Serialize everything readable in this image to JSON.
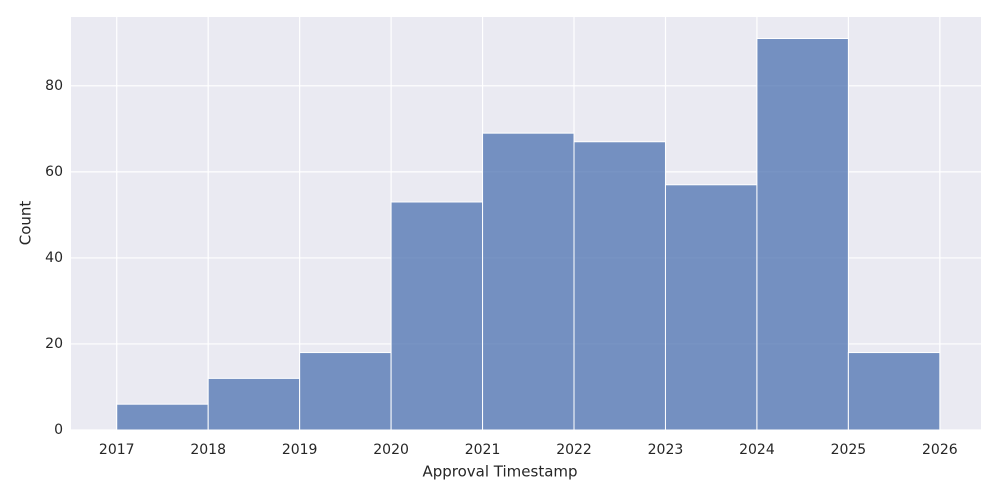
{
  "chart_data": {
    "type": "histogram",
    "xlabel": "Approval Timestamp",
    "ylabel": "Count",
    "bins": [
      2017,
      2018,
      2019,
      2020,
      2021,
      2022,
      2023,
      2024,
      2025,
      2026
    ],
    "values": [
      6,
      12,
      18,
      53,
      69,
      67,
      57,
      91,
      18
    ],
    "color": "#4c72b0",
    "xlim": [
      2016.5,
      2026.45
    ],
    "xticks": [
      2017,
      2018,
      2019,
      2020,
      2021,
      2022,
      2023,
      2024,
      2025,
      2026
    ],
    "ylim": [
      0,
      96
    ],
    "yticks": [
      0,
      20,
      40,
      60,
      80
    ],
    "grid": true
  }
}
